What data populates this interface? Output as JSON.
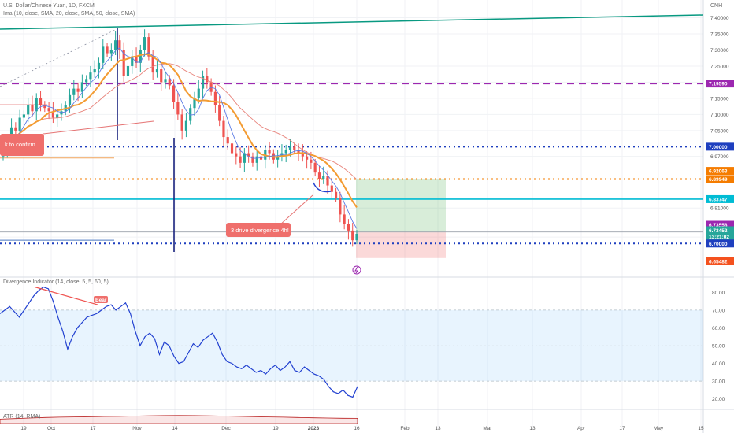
{
  "header": {
    "title": "U.S. Dollar/Chinese Yuan, 1D, FXCM",
    "indicators": "Ima (10, close, SMA, 20, close, SMA, 50, close, SMA)",
    "currency": "CNH"
  },
  "rsi_panel": {
    "title": "Divergence Indicator (14, close, 5, 5, 60, 5)",
    "bear_tag": "Bear"
  },
  "atr_panel": {
    "title": "ATR (14, RMA)"
  },
  "annotations": {
    "left_note": "k to confirm",
    "divergence_note": "3 drive divergence 4h!"
  },
  "colors": {
    "up": "#26a69a",
    "down": "#ef5350",
    "ma_fast": "#5b7be5",
    "ma_mid": "#f39c33",
    "ma_slow": "#e8847c",
    "level_purple": "#9c27b0",
    "level_blue": "#1e3fbf",
    "level_orange": "#f57c00",
    "level_cyan": "#00bcd4",
    "channel": "#089981",
    "rsi": "#2140d0"
  },
  "chart_data": [
    {
      "type": "candlestick",
      "title": "U.S. Dollar/Chinese Yuan, 1D, FXCM",
      "ylim": [
        6.6,
        7.45
      ],
      "price_ticks": [
        7.4,
        7.35,
        7.3,
        7.25,
        7.2,
        7.15,
        7.1,
        7.05,
        6.97,
        6.9,
        6.81,
        6.72
      ],
      "x_ticks": [
        "19",
        "Oct",
        "17",
        "Nov",
        "14",
        "Dec",
        "19",
        "2023",
        "16",
        "Feb",
        "13",
        "Mar",
        "13",
        "Apr",
        "17",
        "May",
        "15"
      ],
      "closes": [
        6.99,
        7.02,
        7.06,
        7.05,
        7.09,
        7.1,
        7.13,
        7.11,
        7.15,
        7.13,
        7.12,
        7.11,
        7.09,
        7.1,
        7.11,
        7.13,
        7.16,
        7.18,
        7.17,
        7.2,
        7.21,
        7.23,
        7.24,
        7.26,
        7.31,
        7.29,
        7.3,
        7.33,
        7.3,
        7.22,
        7.25,
        7.28,
        7.26,
        7.3,
        7.34,
        7.28,
        7.23,
        7.24,
        7.2,
        7.21,
        7.19,
        7.14,
        7.1,
        7.05,
        7.08,
        7.12,
        7.15,
        7.18,
        7.22,
        7.2,
        7.17,
        7.13,
        7.08,
        7.03,
        7.01,
        6.98,
        6.97,
        6.95,
        6.98,
        6.97,
        6.95,
        6.97,
        6.96,
        6.99,
        6.98,
        6.96,
        6.97,
        6.98,
        6.99,
        7.0,
        6.99,
        6.98,
        6.97,
        6.96,
        6.95,
        6.92,
        6.9,
        6.91,
        6.88,
        6.86,
        6.84,
        6.79,
        6.76,
        6.74,
        6.71,
        6.73
      ],
      "levels": [
        {
          "label": "7.19590",
          "value": 7.1959,
          "style": "dashed",
          "color": "#9c27b0"
        },
        {
          "label": "7.00000",
          "value": 7.0,
          "style": "dotted",
          "color": "#1e3fbf"
        },
        {
          "label": "6.89949",
          "value": 6.8995,
          "style": "dotted",
          "color": "#f57c00"
        },
        {
          "label": "6.83747",
          "value": 6.8375,
          "style": "solid",
          "color": "#00bcd4"
        },
        {
          "label": "6.70000",
          "value": 6.7,
          "style": "dotted",
          "color": "#1e3fbf"
        }
      ],
      "price_tags": [
        {
          "label": "7.19590",
          "color": "#9c27b0"
        },
        {
          "label": "7.00000",
          "color": "#1e3fbf"
        },
        {
          "label": "6.92063",
          "color": "#f57c00"
        },
        {
          "label": "6.89949",
          "color": "#f57c00"
        },
        {
          "label": "6.83747",
          "color": "#00bcd4"
        },
        {
          "label": "6.73558",
          "color": "#9c27b0"
        },
        {
          "label": "6.73452",
          "color": "#26a69a"
        },
        {
          "label": "13:21:02",
          "color": "#26a69a"
        },
        {
          "label": "6.70000",
          "color": "#1e3fbf"
        },
        {
          "label": "6.65482",
          "color": "#f4511e"
        }
      ],
      "position": {
        "entry": 6.7346,
        "target": 6.8995,
        "stop": 6.6548
      }
    },
    {
      "type": "line",
      "title": "Divergence Indicator (14, close, 5, 5, 60, 5)",
      "ylim": [
        15,
        85
      ],
      "y_ticks": [
        80,
        70,
        60,
        50,
        40,
        30,
        20
      ],
      "band": [
        30,
        70
      ],
      "values": [
        68,
        70,
        72,
        69,
        66,
        70,
        74,
        78,
        81,
        83,
        82,
        75,
        66,
        58,
        48,
        55,
        60,
        63,
        66,
        67,
        68,
        70,
        72,
        73,
        70,
        72,
        74,
        68,
        58,
        50,
        55,
        57,
        54,
        45,
        52,
        50,
        44,
        40,
        41,
        46,
        51,
        49,
        53,
        55,
        57,
        52,
        45,
        41,
        40,
        38,
        37,
        39,
        37,
        35,
        36,
        34,
        37,
        39,
        36,
        38,
        41,
        36,
        35,
        38,
        36,
        34,
        33,
        31,
        27,
        24,
        23,
        25,
        22,
        21,
        27
      ]
    },
    {
      "type": "area",
      "title": "ATR (14, RMA)",
      "values": [
        0.04,
        0.045,
        0.05,
        0.055,
        0.058,
        0.06,
        0.062,
        0.064,
        0.066,
        0.068,
        0.07,
        0.072,
        0.073,
        0.072,
        0.07,
        0.068,
        0.066,
        0.063,
        0.06,
        0.058,
        0.055,
        0.052,
        0.05,
        0.048,
        0.047
      ]
    }
  ]
}
